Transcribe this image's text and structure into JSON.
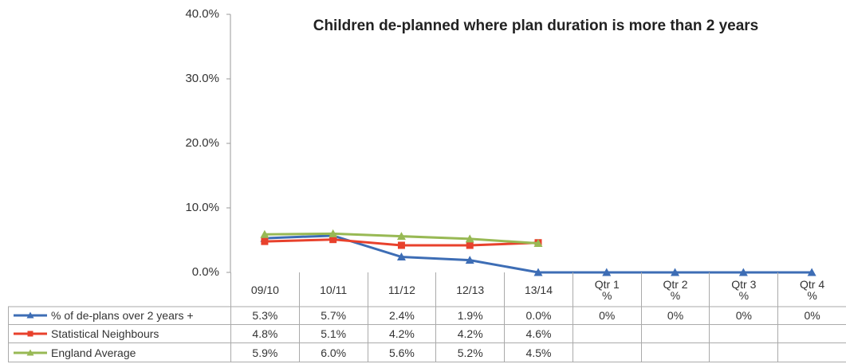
{
  "chart_data": {
    "type": "line",
    "title": "Children de-planned where plan duration is more than 2 years",
    "categories": [
      "09/10",
      "10/11",
      "11/12",
      "12/13",
      "13/14",
      "Qtr 1 %",
      "Qtr 2 %",
      "Qtr 3 %",
      "Qtr 4 %"
    ],
    "series": [
      {
        "name": "% of de-plans over 2 years +",
        "color": "#3d6db5",
        "marker": "triangle",
        "values": [
          5.3,
          5.7,
          2.4,
          1.9,
          0.0,
          0,
          0,
          0,
          0
        ],
        "value_labels": [
          "5.3%",
          "5.7%",
          "2.4%",
          "1.9%",
          "0.0%",
          "0%",
          "0%",
          "0%",
          "0%"
        ]
      },
      {
        "name": "Statistical Neighbours",
        "color": "#e8412c",
        "marker": "square",
        "values": [
          4.8,
          5.1,
          4.2,
          4.2,
          4.6,
          null,
          null,
          null,
          null
        ],
        "value_labels": [
          "4.8%",
          "5.1%",
          "4.2%",
          "4.2%",
          "4.6%",
          null,
          null,
          null,
          null
        ]
      },
      {
        "name": "England Average",
        "color": "#98b954",
        "marker": "triangle",
        "values": [
          5.9,
          6.0,
          5.6,
          5.2,
          4.5,
          null,
          null,
          null,
          null
        ],
        "value_labels": [
          "5.9%",
          "6.0%",
          "5.6%",
          "5.2%",
          "4.5%",
          null,
          null,
          null,
          null
        ]
      }
    ],
    "ylim": [
      0,
      40
    ],
    "yticks": [
      {
        "value": 0,
        "label": "0.0%"
      },
      {
        "value": 10,
        "label": "10.0%"
      },
      {
        "value": 20,
        "label": "20.0%"
      },
      {
        "value": 30,
        "label": "30.0%"
      },
      {
        "value": 40,
        "label": "40.0%"
      }
    ]
  }
}
